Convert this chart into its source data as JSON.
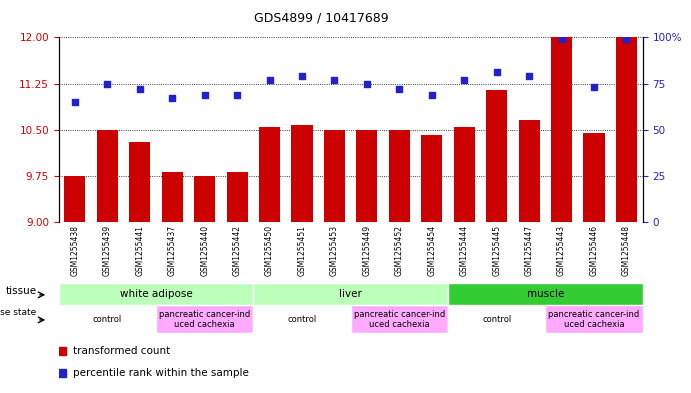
{
  "title": "GDS4899 / 10417689",
  "samples": [
    "GSM1255438",
    "GSM1255439",
    "GSM1255441",
    "GSM1255437",
    "GSM1255440",
    "GSM1255442",
    "GSM1255450",
    "GSM1255451",
    "GSM1255453",
    "GSM1255449",
    "GSM1255452",
    "GSM1255454",
    "GSM1255444",
    "GSM1255445",
    "GSM1255447",
    "GSM1255443",
    "GSM1255446",
    "GSM1255448"
  ],
  "transformed_count": [
    9.75,
    10.5,
    10.3,
    9.82,
    9.75,
    9.82,
    10.55,
    10.58,
    10.5,
    10.5,
    10.5,
    10.42,
    10.55,
    11.15,
    10.65,
    12.0,
    10.45,
    12.0
  ],
  "percentile_rank": [
    65,
    75,
    72,
    67,
    69,
    69,
    77,
    79,
    77,
    75,
    72,
    69,
    77,
    81,
    79,
    99,
    73,
    99
  ],
  "bar_color": "#cc0000",
  "dot_color": "#2222cc",
  "ylim_left": [
    9,
    12
  ],
  "ylim_right": [
    0,
    100
  ],
  "yticks_left": [
    9,
    9.75,
    10.5,
    11.25,
    12
  ],
  "yticks_right": [
    0,
    25,
    50,
    75,
    100
  ],
  "ylabel_right_labels": [
    "0",
    "25",
    "50",
    "75",
    "100%"
  ],
  "bg_color": "#ffffff",
  "tick_label_color_left": "#cc0000",
  "tick_label_color_right": "#2222cc",
  "tissue_data": [
    {
      "label": "white adipose",
      "start": 0,
      "end": 6,
      "color": "#bbffbb"
    },
    {
      "label": "liver",
      "start": 6,
      "end": 12,
      "color": "#bbffbb"
    },
    {
      "label": "muscle",
      "start": 12,
      "end": 18,
      "color": "#33cc33"
    }
  ],
  "disease_data": [
    {
      "label": "control",
      "start": 0,
      "end": 3,
      "color": "#ffffff"
    },
    {
      "label": "pancreatic cancer-ind\nuced cachexia",
      "start": 3,
      "end": 6,
      "color": "#ffaaff"
    },
    {
      "label": "control",
      "start": 6,
      "end": 9,
      "color": "#ffffff"
    },
    {
      "label": "pancreatic cancer-ind\nuced cachexia",
      "start": 9,
      "end": 12,
      "color": "#ffaaff"
    },
    {
      "label": "control",
      "start": 12,
      "end": 15,
      "color": "#ffffff"
    },
    {
      "label": "pancreatic cancer-ind\nuced cachexia",
      "start": 15,
      "end": 18,
      "color": "#ffaaff"
    }
  ]
}
